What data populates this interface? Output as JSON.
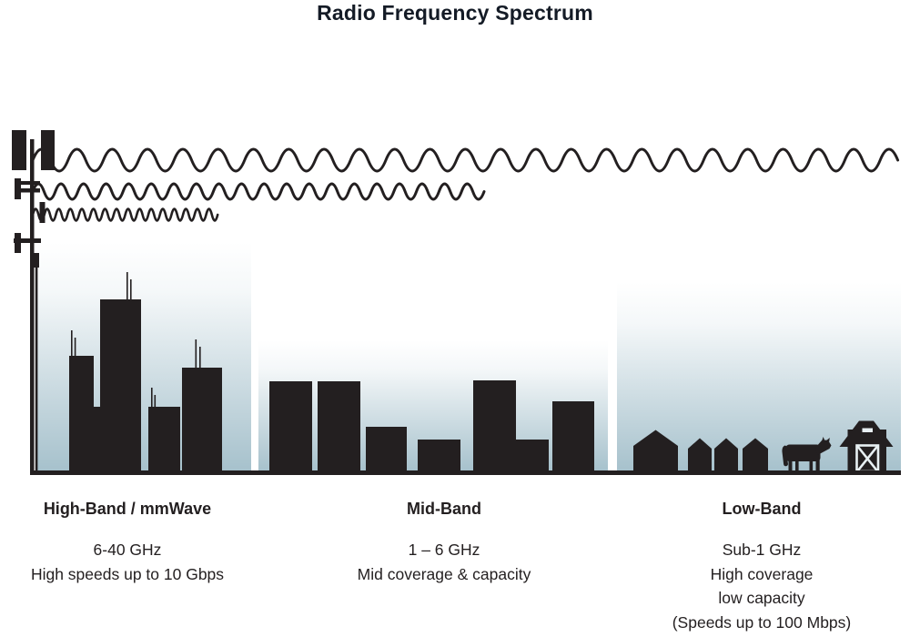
{
  "title": "Radio Frequency Spectrum",
  "colors": {
    "ink": "#231f20",
    "title-ink": "#141b26",
    "sky": "#a6c1cc",
    "slit": "#e8f0f3",
    "bg": "#ffffff"
  },
  "bands": [
    {
      "id": "high-band",
      "label": "High-Band / mmWave",
      "frequency": "6-40 GHz",
      "details": [
        "High speeds up to 10 Gbps"
      ],
      "scene_icon": "city-skyline",
      "wave_icon": "short-wavelength-wave"
    },
    {
      "id": "mid-band",
      "label": "Mid-Band",
      "frequency": "1 – 6 GHz",
      "details": [
        "Mid coverage & capacity"
      ],
      "scene_icon": "mid-rise-buildings",
      "wave_icon": "medium-wavelength-wave"
    },
    {
      "id": "low-band",
      "label": "Low-Band",
      "frequency": "Sub-1 GHz",
      "details": [
        "High coverage",
        "low capacity",
        "(Speeds up to 100 Mbps)"
      ],
      "scene_icon": "farm-houses-cow-barn",
      "wave_icon": "long-wavelength-wave"
    }
  ]
}
